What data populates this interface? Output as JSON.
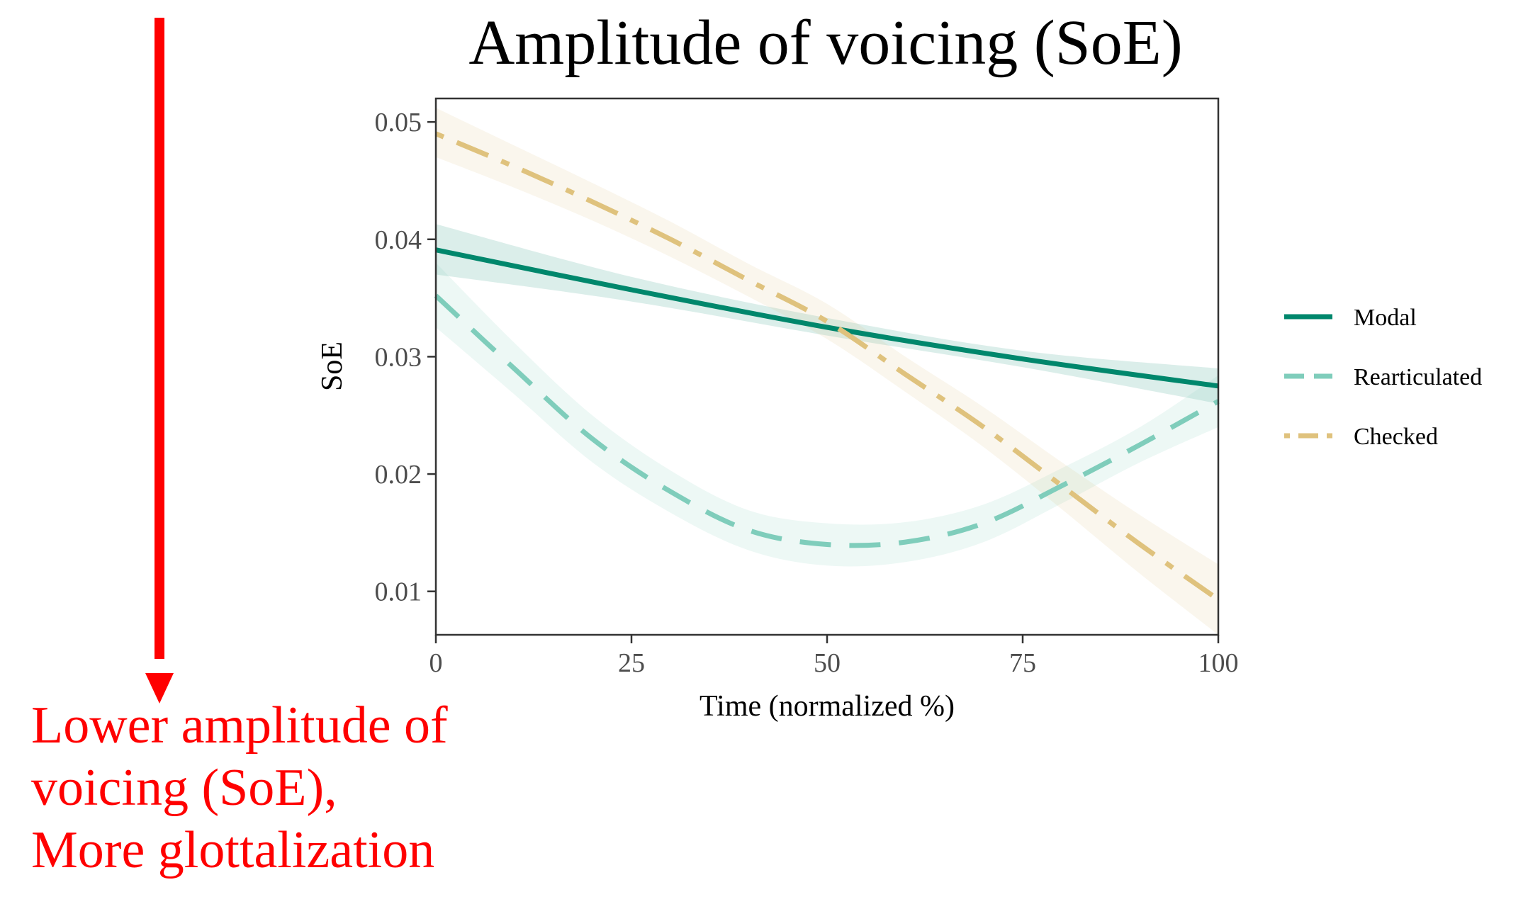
{
  "chart_data": {
    "type": "line",
    "title": "Amplitude of voicing (SoE)",
    "xlabel": "Time (normalized %)",
    "ylabel": "SoE",
    "xlim": [
      0,
      100
    ],
    "ylim": [
      0.0063,
      0.052
    ],
    "x_ticks": [
      0,
      25,
      50,
      75,
      100
    ],
    "x_tick_labels": [
      "0",
      "25",
      "50",
      "75",
      "100"
    ],
    "y_ticks": [
      0.01,
      0.02,
      0.03,
      0.04,
      0.05
    ],
    "y_tick_labels": [
      "0.01",
      "0.02",
      "0.03",
      "0.04",
      "0.05"
    ],
    "grid": false,
    "legend_position": "right",
    "series": [
      {
        "name": "Modal",
        "color": "#00876c",
        "linestyle": "solid",
        "x": [
          0,
          25,
          50,
          75,
          100
        ],
        "y": [
          0.0391,
          0.0357,
          0.0325,
          0.0298,
          0.0275
        ],
        "ci_lower": [
          0.037,
          0.0347,
          0.0318,
          0.0291,
          0.026
        ],
        "ci_upper": [
          0.0413,
          0.0368,
          0.0333,
          0.0305,
          0.029
        ]
      },
      {
        "name": "Rearticulated",
        "color": "#7fcdbb",
        "linestyle": "dashed",
        "x": [
          0,
          10,
          20,
          30,
          40,
          50,
          60,
          70,
          80,
          90,
          100
        ],
        "y": [
          0.0352,
          0.029,
          0.023,
          0.0185,
          0.0152,
          0.014,
          0.0142,
          0.0158,
          0.019,
          0.0225,
          0.0262
        ],
        "ci_lower": [
          0.0325,
          0.0268,
          0.021,
          0.0167,
          0.0135,
          0.0122,
          0.0125,
          0.0142,
          0.0175,
          0.021,
          0.024
        ],
        "ci_upper": [
          0.038,
          0.0312,
          0.025,
          0.0203,
          0.0169,
          0.0158,
          0.0159,
          0.0174,
          0.0205,
          0.024,
          0.0284
        ]
      },
      {
        "name": "Checked",
        "color": "#dfc27d",
        "linestyle": "dotdash",
        "x": [
          0,
          10,
          20,
          30,
          40,
          50,
          60,
          70,
          80,
          90,
          100
        ],
        "y": [
          0.049,
          0.0462,
          0.0432,
          0.04,
          0.0365,
          0.033,
          0.0285,
          0.024,
          0.019,
          0.014,
          0.0093
        ],
        "ci_lower": [
          0.047,
          0.0444,
          0.0416,
          0.0385,
          0.0351,
          0.0315,
          0.027,
          0.0223,
          0.017,
          0.0115,
          0.0063
        ],
        "ci_upper": [
          0.0512,
          0.048,
          0.0448,
          0.0415,
          0.0379,
          0.0345,
          0.03,
          0.0257,
          0.021,
          0.0165,
          0.0123
        ]
      }
    ]
  },
  "annotation": {
    "color": "#ff0000",
    "lines": [
      "Lower amplitude of",
      "voicing (SoE),",
      "More glottalization"
    ]
  }
}
